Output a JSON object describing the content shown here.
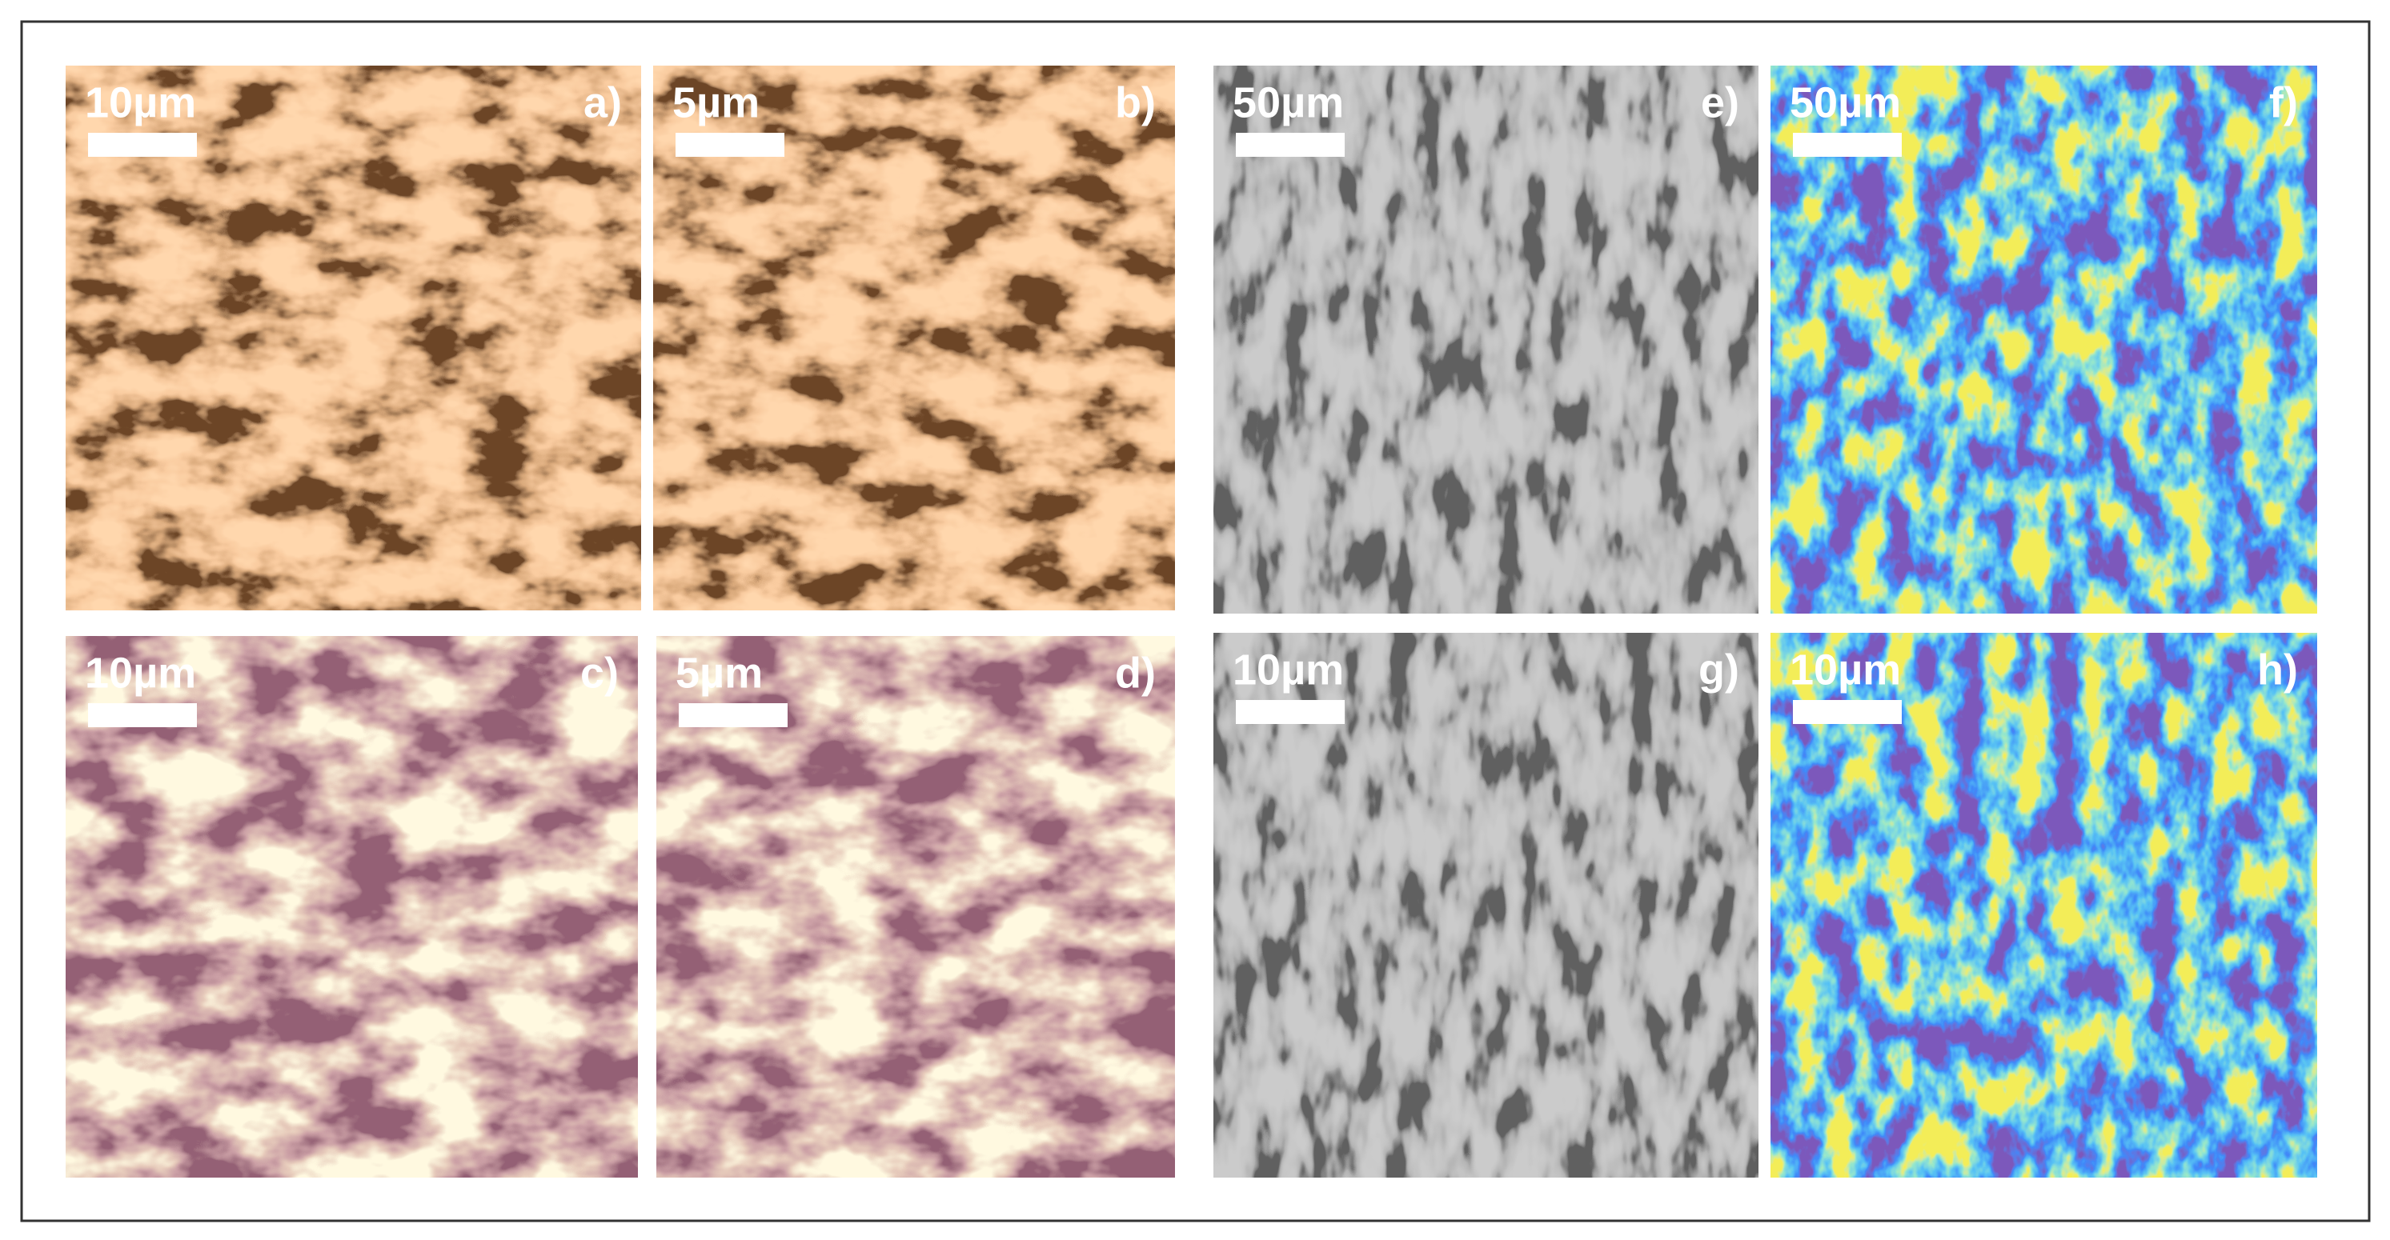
{
  "panels": [
    {
      "scale": "10µm",
      "label": "a)"
    },
    {
      "scale": "5µm",
      "label": "b)"
    },
    {
      "scale": "10µm",
      "label": "c)"
    },
    {
      "scale": "5µm",
      "label": "d)"
    },
    {
      "scale": "50µm",
      "label": "e)"
    },
    {
      "scale": "50µm",
      "label": "f)"
    },
    {
      "scale": "10µm",
      "label": "g)"
    },
    {
      "scale": "10µm",
      "label": "h)"
    }
  ]
}
